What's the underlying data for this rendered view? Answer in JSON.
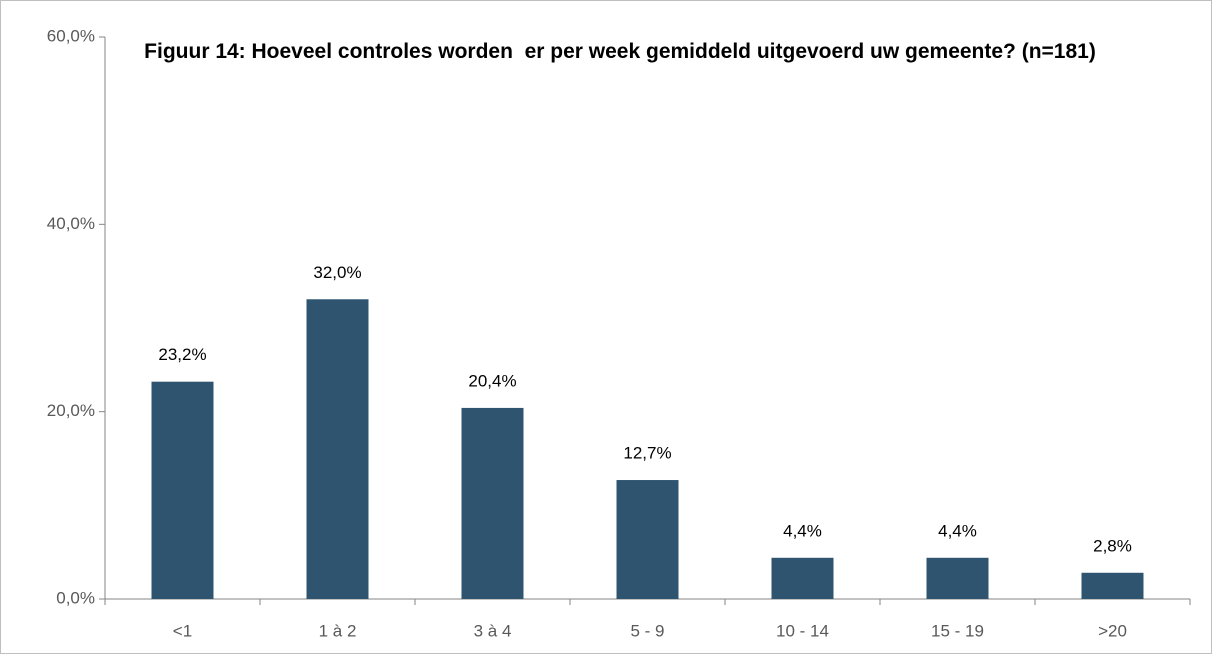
{
  "chart_data": {
    "type": "bar",
    "title": "Figuur 14: Hoeveel controles worden  er per week gemiddeld uitgevoerd uw gemeente? (n=181)",
    "categories": [
      "<1",
      "1 à 2",
      "3 à 4",
      "5 - 9",
      "10 - 14",
      "15 - 19",
      ">20"
    ],
    "values": [
      23.2,
      32.0,
      20.4,
      12.7,
      4.4,
      4.4,
      2.8
    ],
    "value_labels": [
      "23,2%",
      "32,0%",
      "20,4%",
      "12,7%",
      "4,4%",
      "4,4%",
      "2,8%"
    ],
    "color": "#2e5470",
    "ylim": [
      0,
      60
    ],
    "yticks": [
      {
        "value": 0,
        "label": "0,0%"
      },
      {
        "value": 20,
        "label": "20,0%"
      },
      {
        "value": 40,
        "label": "40,0%"
      },
      {
        "value": 60,
        "label": "60,0%"
      }
    ],
    "grid": false
  }
}
